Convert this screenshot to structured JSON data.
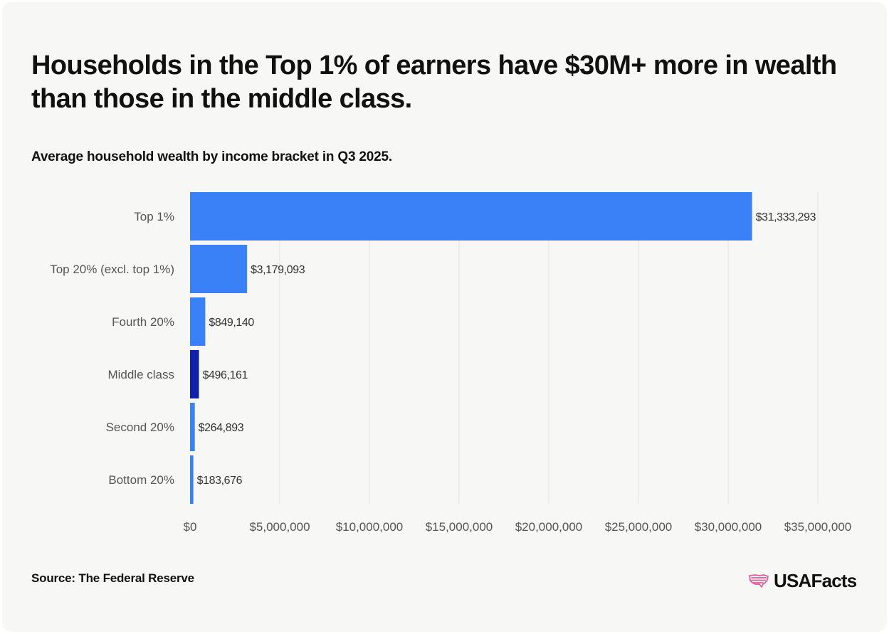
{
  "title": "Households in the Top 1% of earners have $30M+ more in wealth than those in the middle class.",
  "subtitle": "Average household wealth by income bracket in Q3 2025.",
  "source": "Source: The Federal Reserve",
  "brand": {
    "name": "USAFacts",
    "icon": "usa-map-flag-icon"
  },
  "colors": {
    "bar": "#3a80f7",
    "highlight": "#1020a8",
    "background": "#f7f7f5",
    "grid": "#e3e3e3",
    "text": "#111111",
    "label": "#555555",
    "brand_icon": "#e0609a"
  },
  "chart_data": {
    "type": "bar",
    "orientation": "horizontal",
    "categories": [
      "Top 1%",
      "Top 20% (excl. top 1%)",
      "Fourth 20%",
      "Middle class",
      "Second 20%",
      "Bottom 20%"
    ],
    "values": [
      31333293,
      3179093,
      849140,
      496161,
      264893,
      183676
    ],
    "value_labels": [
      "$31,333,293",
      "$3,179,093",
      "$849,140",
      "$496,161",
      "$264,893",
      "$183,676"
    ],
    "highlight": "Middle class",
    "xlim": [
      0,
      35000000
    ],
    "xticks": [
      0,
      5000000,
      10000000,
      15000000,
      20000000,
      25000000,
      30000000,
      35000000
    ],
    "xtick_labels": [
      "$0",
      "$5,000,000",
      "$10,000,000",
      "$15,000,000",
      "$20,000,000",
      "$25,000,000",
      "$30,000,000",
      "$35,000,000"
    ],
    "grid": true,
    "xlabel": "",
    "ylabel": ""
  }
}
